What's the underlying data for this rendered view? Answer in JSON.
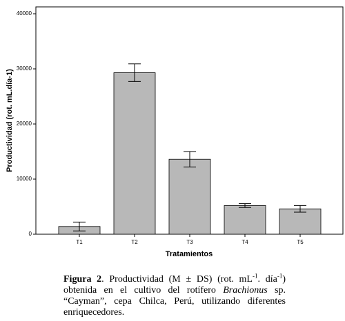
{
  "chart_data": {
    "type": "bar",
    "ylabel": "Productividad (rot. mL.día-1)",
    "xlabel": "Tratamientos",
    "categories": [
      "T1",
      "T2",
      "T3",
      "T4",
      "T5"
    ],
    "values": [
      1400,
      29300,
      13600,
      5200,
      4600
    ],
    "errors": [
      800,
      1600,
      1400,
      350,
      600
    ],
    "color": "#b8b8b8",
    "ylim": [
      0,
      40000
    ],
    "yticks": [
      0,
      10000,
      20000,
      30000,
      40000
    ],
    "grid": false
  },
  "caption": [
    {
      "text": "Figura 2",
      "style": "bold"
    },
    {
      "text": ". Productividad (M ± DS) (rot. mL",
      "style": "normal"
    },
    {
      "text": "-1",
      "style": "sup"
    },
    {
      "text": ". día",
      "style": "normal"
    },
    {
      "text": "-1",
      "style": "sup"
    },
    {
      "text": ") obtenida en el cultivo del rotífero ",
      "style": "normal"
    },
    {
      "text": "Brachionus",
      "style": "italic"
    },
    {
      "text": " sp. “Cayman”,  cepa Chilca, Perú, utilizando diferentes enriquecedores.",
      "style": "normal"
    }
  ]
}
